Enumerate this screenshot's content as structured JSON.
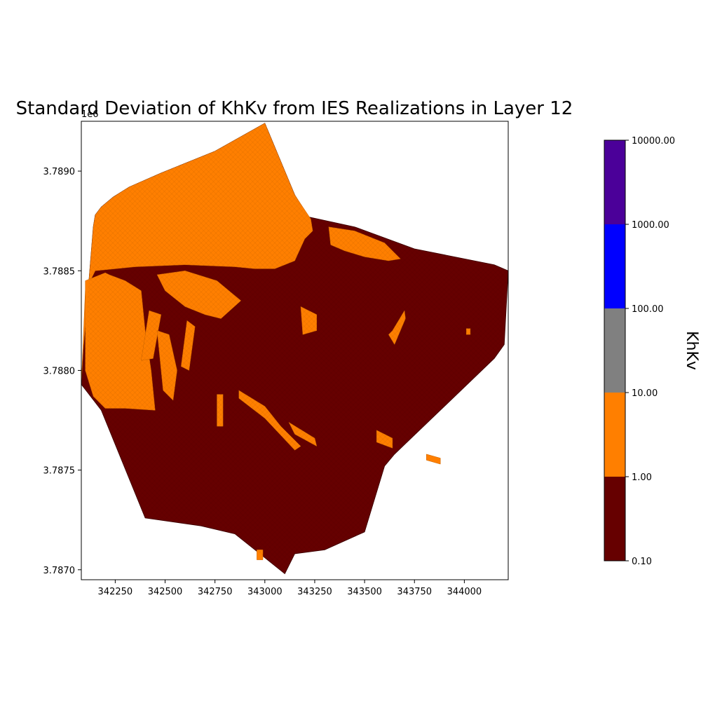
{
  "chart_data": {
    "type": "heatmap",
    "title": "Standard Deviation of KhKv from IES Realizations in Layer 12",
    "xlabel": "",
    "ylabel": "",
    "y_offset_label": "1e6",
    "xlim": [
      342080,
      344220
    ],
    "ylim": [
      3.78695,
      3.78925
    ],
    "x_ticks": [
      342250,
      342500,
      342750,
      343000,
      343250,
      343500,
      343750,
      344000
    ],
    "y_ticks": [
      3.787,
      3.7875,
      3.788,
      3.7885,
      3.789
    ],
    "x_tick_labels": [
      "342250",
      "342500",
      "342750",
      "343000",
      "343250",
      "343500",
      "343750",
      "344000"
    ],
    "y_tick_labels": [
      "3.7870",
      "3.7875",
      "3.7880",
      "3.7885",
      "3.7890"
    ],
    "grid": false,
    "colorbar": {
      "label": "KhKv",
      "scale": "log",
      "boundaries": [
        0.1,
        1.0,
        10.0,
        100.0,
        1000.0,
        10000.0
      ],
      "tick_labels": [
        "0.10",
        "1.00",
        "10.00",
        "100.00",
        "1000.00",
        "10000.00"
      ],
      "colors": [
        "#660000",
        "#ff7f00",
        "#808080",
        "#0000ff",
        "#4b0099"
      ]
    },
    "domain_outline": [
      [
        342150,
        3.78878
      ],
      [
        342180,
        3.78882
      ],
      [
        342240,
        3.78887
      ],
      [
        342320,
        3.78892
      ],
      [
        342480,
        3.78899
      ],
      [
        342750,
        3.7891
      ],
      [
        343000,
        3.78924
      ],
      [
        343150,
        3.78888
      ],
      [
        343220,
        3.78877
      ],
      [
        343450,
        3.78872
      ],
      [
        343750,
        3.78861
      ],
      [
        344150,
        3.78853
      ],
      [
        344220,
        3.7885
      ],
      [
        344200,
        3.78813
      ],
      [
        344150,
        3.78806
      ],
      [
        343650,
        3.78758
      ],
      [
        343600,
        3.78752
      ],
      [
        343500,
        3.78719
      ],
      [
        343300,
        3.7871
      ],
      [
        343150,
        3.78708
      ],
      [
        343100,
        3.78698
      ],
      [
        342950,
        3.7871
      ],
      [
        342850,
        3.78718
      ],
      [
        342680,
        3.78722
      ],
      [
        342400,
        3.78726
      ],
      [
        342180,
        3.7878
      ],
      [
        342080,
        3.78793
      ],
      [
        342090,
        3.7881
      ],
      [
        342140,
        3.78872
      ]
    ],
    "regions": [
      {
        "value": "1.00-10.00",
        "polygon": [
          [
            342150,
            3.78878
          ],
          [
            342180,
            3.78882
          ],
          [
            342240,
            3.78887
          ],
          [
            342320,
            3.78892
          ],
          [
            342480,
            3.78899
          ],
          [
            342750,
            3.7891
          ],
          [
            343000,
            3.78924
          ],
          [
            343150,
            3.78888
          ],
          [
            343230,
            3.78876
          ],
          [
            343240,
            3.7887
          ],
          [
            343200,
            3.78866
          ],
          [
            343150,
            3.78855
          ],
          [
            343050,
            3.78851
          ],
          [
            342950,
            3.78851
          ],
          [
            342850,
            3.78852
          ],
          [
            342600,
            3.78853
          ],
          [
            342350,
            3.78852
          ],
          [
            342150,
            3.7885
          ],
          [
            342100,
            3.7884
          ],
          [
            342080,
            3.78793
          ],
          [
            342090,
            3.7881
          ],
          [
            342140,
            3.78872
          ]
        ]
      },
      {
        "value": "1.00-10.00",
        "polygon": [
          [
            342100,
            3.78845
          ],
          [
            342200,
            3.78849
          ],
          [
            342220,
            3.78848
          ],
          [
            342300,
            3.78845
          ],
          [
            342380,
            3.7884
          ],
          [
            342400,
            3.7882
          ],
          [
            342430,
            3.788
          ],
          [
            342450,
            3.7878
          ],
          [
            342300,
            3.78781
          ],
          [
            342200,
            3.78781
          ],
          [
            342140,
            3.78787
          ],
          [
            342100,
            3.788
          ]
        ]
      },
      {
        "value": "1.00-10.00",
        "polygon": [
          [
            342460,
            3.78848
          ],
          [
            342600,
            3.7885
          ],
          [
            342760,
            3.78845
          ],
          [
            342820,
            3.7884
          ],
          [
            342880,
            3.78835
          ],
          [
            342780,
            3.78826
          ],
          [
            342700,
            3.78828
          ],
          [
            342600,
            3.78832
          ],
          [
            342500,
            3.7884
          ]
        ]
      },
      {
        "value": "1.00-10.00",
        "polygon": [
          [
            343320,
            3.78872
          ],
          [
            343450,
            3.7887
          ],
          [
            343600,
            3.78864
          ],
          [
            343650,
            3.78859
          ],
          [
            343680,
            3.78856
          ],
          [
            343620,
            3.78855
          ],
          [
            343500,
            3.78857
          ],
          [
            343400,
            3.7886
          ],
          [
            343330,
            3.78863
          ]
        ]
      },
      {
        "value": "1.00-10.00",
        "polygon": [
          [
            342420,
            3.7883
          ],
          [
            342480,
            3.78828
          ],
          [
            342440,
            3.78806
          ],
          [
            342380,
            3.78805
          ]
        ]
      },
      {
        "value": "1.00-10.00",
        "polygon": [
          [
            342460,
            3.7882
          ],
          [
            342520,
            3.78818
          ],
          [
            342560,
            3.788
          ],
          [
            342540,
            3.78785
          ],
          [
            342490,
            3.7879
          ]
        ]
      },
      {
        "value": "1.00-10.00",
        "polygon": [
          [
            342610,
            3.78825
          ],
          [
            342650,
            3.78822
          ],
          [
            342620,
            3.788
          ],
          [
            342580,
            3.78802
          ]
        ]
      },
      {
        "value": "1.00-10.00",
        "polygon": [
          [
            343180,
            3.78832
          ],
          [
            343260,
            3.78828
          ],
          [
            343260,
            3.7882
          ],
          [
            343190,
            3.78818
          ]
        ]
      },
      {
        "value": "1.00-10.00",
        "polygon": [
          [
            343620,
            3.78818
          ],
          [
            343640,
            3.7882
          ],
          [
            343700,
            3.7883
          ],
          [
            343705,
            3.78826
          ],
          [
            343650,
            3.78813
          ]
        ]
      },
      {
        "value": "1.00-10.00",
        "polygon": [
          [
            342870,
            3.7879
          ],
          [
            343000,
            3.78782
          ],
          [
            343080,
            3.78772
          ],
          [
            343180,
            3.78762
          ],
          [
            343150,
            3.7876
          ],
          [
            343000,
            3.78776
          ],
          [
            342870,
            3.78786
          ]
        ]
      },
      {
        "value": "1.00-10.00",
        "polygon": [
          [
            343120,
            3.78774
          ],
          [
            343250,
            3.78766
          ],
          [
            343260,
            3.78762
          ],
          [
            343150,
            3.78768
          ]
        ]
      },
      {
        "value": "1.00-10.00",
        "polygon": [
          [
            343560,
            3.7877
          ],
          [
            343640,
            3.78766
          ],
          [
            343640,
            3.78761
          ],
          [
            343560,
            3.78764
          ]
        ]
      },
      {
        "value": "1.00-10.00",
        "polygon": [
          [
            343810,
            3.78758
          ],
          [
            343880,
            3.78756
          ],
          [
            343880,
            3.78753
          ],
          [
            343810,
            3.78755
          ]
        ]
      },
      {
        "value": "1.00-10.00",
        "polygon": [
          [
            342760,
            3.78788
          ],
          [
            342790,
            3.78788
          ],
          [
            342790,
            3.78772
          ],
          [
            342760,
            3.78772
          ]
        ]
      },
      {
        "value": "1.00-10.00",
        "polygon": [
          [
            342960,
            3.7871
          ],
          [
            342990,
            3.7871
          ],
          [
            342990,
            3.78705
          ],
          [
            342960,
            3.78705
          ]
        ]
      },
      {
        "value": "1.00-10.00",
        "polygon": [
          [
            344010,
            3.78821
          ],
          [
            344030,
            3.78821
          ],
          [
            344030,
            3.78818
          ],
          [
            344010,
            3.78818
          ]
        ]
      }
    ]
  }
}
